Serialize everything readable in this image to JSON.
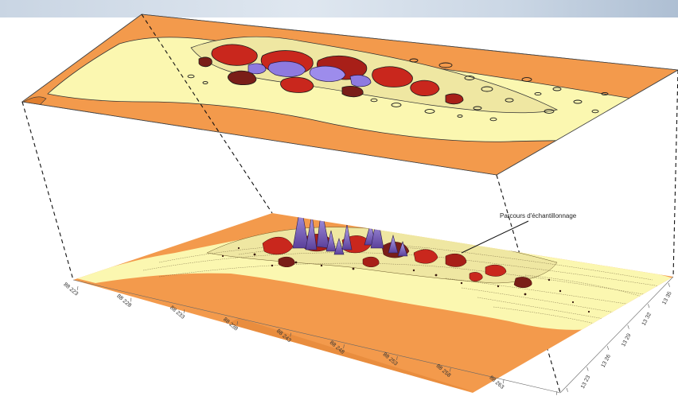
{
  "annotation": {
    "label": "Parcours d'échantillonnage"
  },
  "axis_front": {
    "tick_labels": [
      "88 223",
      "88 228",
      "88 233",
      "88 238",
      "88 243",
      "88 248",
      "88 253",
      "88 258",
      "88 263",
      ""
    ]
  },
  "axis_right": {
    "tick_labels": [
      "13 20",
      "13 23",
      "13 26",
      "13 29",
      "13 32",
      "13 35"
    ]
  },
  "colors": {
    "orange": "#f39a4c",
    "orange_dark": "#e07e2e",
    "light_yellow": "#fbf7b0",
    "pale_yellow": "#efe7a2",
    "red": "#c9271d",
    "dark_red": "#7a1e18",
    "purple": "#8e7ae0",
    "outline": "#222222"
  }
}
